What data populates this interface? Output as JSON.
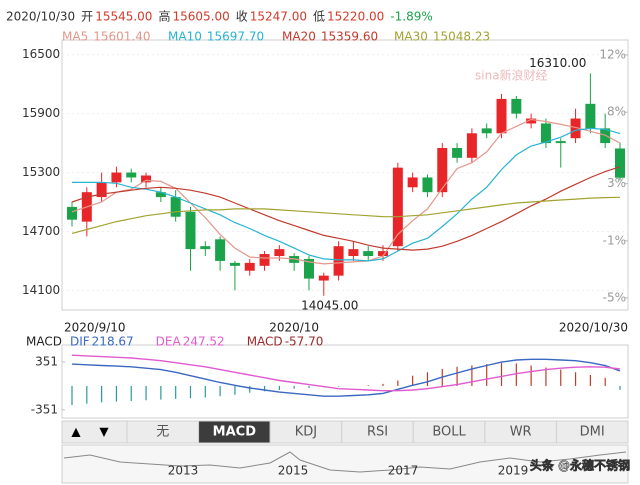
{
  "chart_data": {
    "type": "candlestick",
    "header": {
      "date": "2020/10/30",
      "items": [
        {
          "label": "开",
          "value": "15545.00"
        },
        {
          "label": "高",
          "value": "15605.00"
        },
        {
          "label": "收",
          "value": "15247.00"
        },
        {
          "label": "低",
          "value": "15220.00"
        }
      ],
      "change": "-1.89%"
    },
    "categories": [
      "2020/9/10",
      null,
      null,
      null,
      null,
      null,
      null,
      null,
      null,
      null,
      null,
      null,
      null,
      null,
      null,
      "2020/10",
      null,
      null,
      null,
      null,
      null,
      null,
      null,
      null,
      null,
      null,
      null,
      null,
      null,
      null,
      null,
      null,
      null,
      null,
      null,
      null,
      null,
      "2020/10/30"
    ],
    "open": [
      14950,
      14800,
      15050,
      15200,
      15300,
      15200,
      15100,
      15050,
      14900,
      14550,
      14620,
      14380,
      14300,
      14350,
      14450,
      14450,
      14420,
      14200,
      14250,
      14450,
      14500,
      14450,
      14550,
      15150,
      15250,
      15100,
      15550,
      15450,
      15750,
      15700,
      16050,
      15800,
      15800,
      15620,
      15650,
      16000,
      15750,
      15545
    ],
    "close": [
      14820,
      15100,
      15200,
      15300,
      15250,
      15270,
      15050,
      14850,
      14520,
      14520,
      14400,
      14350,
      14380,
      14470,
      14520,
      14380,
      14220,
      14250,
      14550,
      14520,
      14450,
      14500,
      15350,
      15250,
      15100,
      15550,
      15450,
      15700,
      15700,
      16050,
      15900,
      15850,
      15600,
      15600,
      15850,
      15750,
      15600,
      15247
    ],
    "high": [
      15000,
      15150,
      15300,
      15360,
      15340,
      15300,
      15150,
      15120,
      14950,
      14600,
      14650,
      14400,
      14420,
      14500,
      14560,
      14480,
      14450,
      14280,
      14600,
      14600,
      14550,
      14560,
      15400,
      15300,
      15280,
      15600,
      15600,
      15750,
      15800,
      16100,
      16080,
      15900,
      15850,
      15650,
      15950,
      16310,
      15900,
      15605
    ],
    "low": [
      14750,
      14650,
      15000,
      15150,
      15200,
      15150,
      15000,
      14800,
      14300,
      14450,
      14300,
      14100,
      14250,
      14300,
      14400,
      14300,
      14100,
      14045,
      14200,
      14400,
      14400,
      14400,
      14500,
      15100,
      15050,
      15050,
      15400,
      15400,
      15650,
      15650,
      15850,
      15750,
      15550,
      15350,
      15600,
      15700,
      15550,
      15220
    ],
    "up_color": "#e8262a",
    "down_color": "#1aa34a",
    "high_label": "16310.00",
    "low_label": "14045.00",
    "ma": [
      {
        "name": "MA5",
        "value_label": "15601.40",
        "color": "#e3978b",
        "values": [
          14900,
          14950,
          15000,
          15100,
          15130,
          15220,
          15210,
          15140,
          14990,
          14840,
          14670,
          14530,
          14440,
          14430,
          14430,
          14420,
          14390,
          14370,
          14380,
          14390,
          14400,
          14450,
          14670,
          14810,
          14930,
          15140,
          15340,
          15400,
          15510,
          15700,
          15770,
          15840,
          15820,
          15790,
          15760,
          15720,
          15680,
          15601
        ]
      },
      {
        "name": "MA10",
        "value_label": "15697.70",
        "color": "#27b3d3",
        "values": [
          15200,
          15200,
          15200,
          15190,
          15150,
          15130,
          15100,
          15050,
          14990,
          14930,
          14870,
          14790,
          14730,
          14660,
          14600,
          14530,
          14460,
          14420,
          14410,
          14410,
          14400,
          14420,
          14500,
          14580,
          14630,
          14750,
          14880,
          15030,
          15150,
          15330,
          15480,
          15570,
          15610,
          15660,
          15730,
          15750,
          15740,
          15697
        ]
      },
      {
        "name": "MA20",
        "value_label": "15359.60",
        "color": "#c23a2e",
        "values": [
          15000,
          15050,
          15080,
          15100,
          15120,
          15140,
          15150,
          15140,
          15120,
          15090,
          15050,
          14990,
          14930,
          14870,
          14810,
          14760,
          14710,
          14660,
          14630,
          14600,
          14560,
          14530,
          14520,
          14510,
          14520,
          14550,
          14600,
          14660,
          14730,
          14800,
          14880,
          14960,
          15030,
          15110,
          15180,
          15250,
          15310,
          15359
        ]
      },
      {
        "name": "MA30",
        "value_label": "15048.23",
        "color": "#a3a332",
        "values": [
          14680,
          14720,
          14760,
          14800,
          14830,
          14860,
          14880,
          14900,
          14910,
          14920,
          14920,
          14930,
          14930,
          14930,
          14920,
          14910,
          14900,
          14890,
          14880,
          14870,
          14860,
          14850,
          14850,
          14860,
          14870,
          14890,
          14910,
          14930,
          14950,
          14970,
          14990,
          15000,
          15010,
          15020,
          15030,
          15040,
          15045,
          15048
        ]
      }
    ],
    "ylim": [
      13900,
      16650
    ],
    "yticks": [
      14100,
      14700,
      15300,
      15900,
      16500
    ],
    "y2lim": [
      -5.84,
      13.05
    ],
    "y2ticks": [
      {
        "value": 12,
        "label": "12%"
      },
      {
        "value": 8,
        "label": "8%"
      },
      {
        "value": 3,
        "label": "3%"
      },
      {
        "value": -1,
        "label": "-1%"
      },
      {
        "value": -5,
        "label": "-5%"
      }
    ],
    "watermark": "sina新浪财经",
    "macd": {
      "title": "MACD",
      "ylim": [
        -470,
        600
      ],
      "yticks": [
        351,
        -351
      ],
      "dif": {
        "name": "DIF",
        "value_label": "218.67",
        "color": "#3a68c0",
        "values": [
          320,
          310,
          300,
          290,
          280,
          260,
          240,
          200,
          150,
          100,
          50,
          10,
          -30,
          -60,
          -90,
          -110,
          -130,
          -150,
          -150,
          -140,
          -130,
          -110,
          -50,
          10,
          60,
          130,
          190,
          250,
          300,
          350,
          380,
          390,
          390,
          380,
          370,
          340,
          300,
          218.67
        ]
      },
      "dea": {
        "name": "DEA",
        "value_label": "247.52",
        "color": "#e05ad0",
        "values": [
          450,
          440,
          430,
          420,
          410,
          390,
          370,
          340,
          310,
          280,
          240,
          200,
          160,
          120,
          80,
          50,
          20,
          -10,
          -40,
          -50,
          -60,
          -70,
          -70,
          -60,
          -40,
          -10,
          20,
          60,
          100,
          140,
          180,
          210,
          240,
          260,
          275,
          280,
          275,
          247.52
        ]
      },
      "hist": {
        "name": "MACD",
        "value_label": "-57.70",
        "color": "#9a2a2a",
        "up_color": "#c0392b",
        "down_color": "#2a9a9a",
        "values": [
          -280,
          -260,
          -240,
          -230,
          -220,
          -210,
          -200,
          -190,
          -180,
          -170,
          -150,
          -130,
          -100,
          -80,
          -60,
          -40,
          -30,
          -20,
          -10,
          0,
          10,
          30,
          80,
          150,
          200,
          250,
          280,
          300,
          320,
          340,
          330,
          300,
          270,
          240,
          200,
          160,
          120,
          -57.7
        ]
      }
    },
    "tabs": [
      "无",
      "MACD",
      "KDJ",
      "RSI",
      "BOLL",
      "WR",
      "DMI"
    ],
    "active_tab": "MACD",
    "overview_years": [
      "2013",
      "2015",
      "2017",
      "2019"
    ],
    "credit": "头条 @永穗不锈钢"
  }
}
